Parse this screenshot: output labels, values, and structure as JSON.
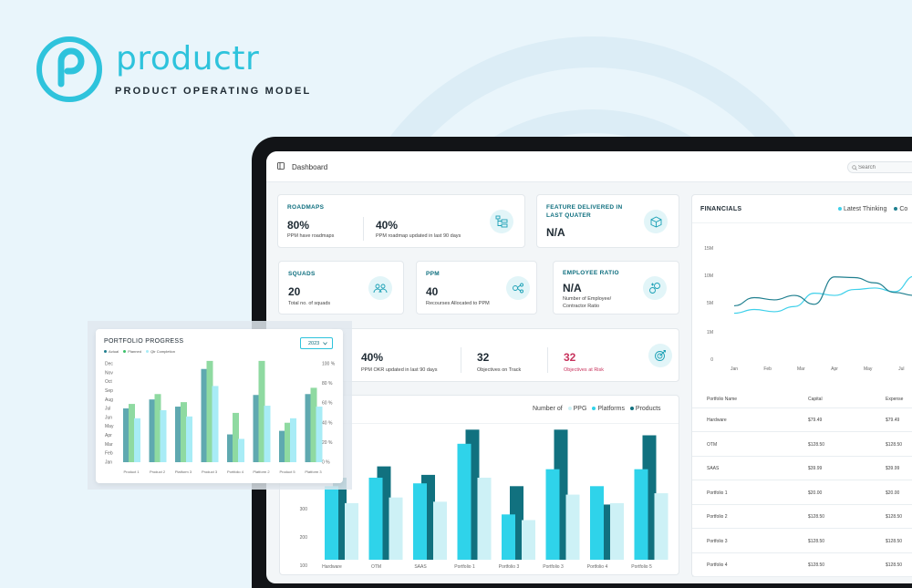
{
  "brand": {
    "name": "productr",
    "tagline": "PRODUCT OPERATING MODEL",
    "accent": "#2ec3dc"
  },
  "topbar": {
    "title": "Dashboard",
    "search_placeholder": "Search"
  },
  "roadmaps": {
    "title": "ROADMAPS",
    "stats": [
      {
        "value": "80%",
        "label": "PPM have roadmaps"
      },
      {
        "value": "40%",
        "label": "PPM roadmap updated in last 90 days"
      }
    ]
  },
  "feature": {
    "title_line1": "FEATURE DELIVERED IN",
    "title_line2": "LAST QUATER",
    "value": "N/A"
  },
  "squads": {
    "title": "SQUADS",
    "value": "20",
    "label": "Total no.  of squads"
  },
  "ppm": {
    "title": "PPM",
    "value": "40",
    "label": "Recourses Allocated to PPM"
  },
  "employee": {
    "title": "EMPLOYEE RATIO",
    "value": "N/A",
    "label_line1": "Number of Employee/",
    "label_line2": "Contractor Ratio"
  },
  "okr": {
    "stats": [
      {
        "value": "40%",
        "label": "PPM OKR updated in last 90 days"
      },
      {
        "value": "32",
        "label": "Objectives on Track"
      },
      {
        "value": "32",
        "label": "Objectives at Risk"
      }
    ]
  },
  "financials": {
    "title": "FINANCIALS",
    "legend": [
      "Latest Thinking",
      "Co"
    ],
    "table": {
      "headers": [
        "Portfolio Name",
        "Capital",
        "Expense"
      ],
      "rows": [
        [
          "Hardware",
          "$79.49",
          "$79.49"
        ],
        [
          "OTM",
          "$128.50",
          "$128.50"
        ],
        [
          "SAAS",
          "$39.99",
          "$39.99"
        ],
        [
          "Portfolio 1",
          "$20.00",
          "$20.00"
        ],
        [
          "Portfolio 2",
          "$128.50",
          "$128.50"
        ],
        [
          "Portfolio 3",
          "$128.50",
          "$128.50"
        ],
        [
          "Portfolio 4",
          "$128.50",
          "$128.50"
        ]
      ]
    }
  },
  "portfolio_progress": {
    "title": "PORTFOLIO PROGRESS",
    "year": "2023",
    "legend": [
      "Actual",
      "Planned",
      "Qtr Completion"
    ]
  },
  "chart_data": [
    {
      "type": "line",
      "x": [
        "Jan",
        "Feb",
        "Mar",
        "Apr",
        "May",
        "Jul"
      ],
      "y_ticks": [
        "15M",
        "10M",
        "5M",
        "1M",
        "0"
      ],
      "ylim": [
        0,
        15
      ],
      "series": [
        {
          "name": "Latest Thinking",
          "color": "#3fd0ea",
          "points": [
            [
              0,
              6.2
            ],
            [
              0.6,
              6.7
            ],
            [
              1.2,
              6.4
            ],
            [
              1.8,
              7.1
            ],
            [
              2.4,
              8.9
            ],
            [
              3.0,
              8.6
            ],
            [
              3.6,
              9.4
            ],
            [
              4.2,
              9.6
            ],
            [
              4.8,
              9.1
            ],
            [
              5.4,
              11.2
            ],
            [
              5.8,
              12.5
            ]
          ]
        },
        {
          "name": "Co",
          "color": "#1f7f8f",
          "points": [
            [
              0,
              7.2
            ],
            [
              0.6,
              8.3
            ],
            [
              1.2,
              8.0
            ],
            [
              1.8,
              8.6
            ],
            [
              2.4,
              7.4
            ],
            [
              3.0,
              11.1
            ],
            [
              3.6,
              11.0
            ],
            [
              4.2,
              10.3
            ],
            [
              4.8,
              9.0
            ],
            [
              5.4,
              8.6
            ],
            [
              5.8,
              8.9
            ]
          ]
        }
      ]
    },
    {
      "type": "bar",
      "legend_prefix": "Number of",
      "categories": [
        "Hardware",
        "OTM",
        "SAAS",
        "Portfolio 1",
        "Portfolio 3",
        "Portfolio 3",
        "Portfolio 4",
        "Portfolio 5"
      ],
      "y_ticks": [
        100,
        200,
        300,
        400
      ],
      "ylim": [
        100,
        500
      ],
      "series": [
        {
          "name": "PPG",
          "color": "#2fd3ea",
          "values": [
            270,
            300,
            280,
            420,
            170,
            330,
            270,
            330
          ]
        },
        {
          "name": "Platforms",
          "color": "#cdf1f6",
          "values": [
            210,
            230,
            215,
            300,
            150,
            240,
            210,
            245
          ]
        },
        {
          "name": "Products",
          "color": "#11717f",
          "values": [
            300,
            340,
            310,
            470,
            270,
            470,
            205,
            450
          ]
        }
      ]
    },
    {
      "type": "bar",
      "title": "PORTFOLIO PROGRESS",
      "categories": [
        "Product 1",
        "Product 2",
        "Platform 3",
        "Product 3",
        "Portfolio 4",
        "Platform 2",
        "Product 5",
        "Platform 3"
      ],
      "y_ticks_left": [
        "Dec",
        "Nov",
        "Oct",
        "Sep",
        "Aug",
        "Jul",
        "Jun",
        "May",
        "Apr",
        "Mar",
        "Feb",
        "Jan"
      ],
      "y_ticks_right": [
        "100 %",
        "80 %",
        "60 %",
        "40 %",
        "20 %",
        "0 %"
      ],
      "ylim": [
        0,
        12
      ],
      "series": [
        {
          "name": "Actual",
          "color": "#5fa9b0",
          "values": [
            6,
            7,
            6.2,
            10.4,
            3.1,
            7.5,
            3.5,
            7.6
          ]
        },
        {
          "name": "Planned",
          "color": "#8fdaa1",
          "values": [
            6.5,
            7.6,
            6.7,
            11.3,
            5.5,
            11.3,
            4.4,
            8.3
          ]
        },
        {
          "name": "Qtr Completion",
          "color": "#a8ecf6",
          "values": [
            4.9,
            5.8,
            5.1,
            8.5,
            2.6,
            6.3,
            4.9,
            6.2
          ]
        }
      ]
    }
  ]
}
